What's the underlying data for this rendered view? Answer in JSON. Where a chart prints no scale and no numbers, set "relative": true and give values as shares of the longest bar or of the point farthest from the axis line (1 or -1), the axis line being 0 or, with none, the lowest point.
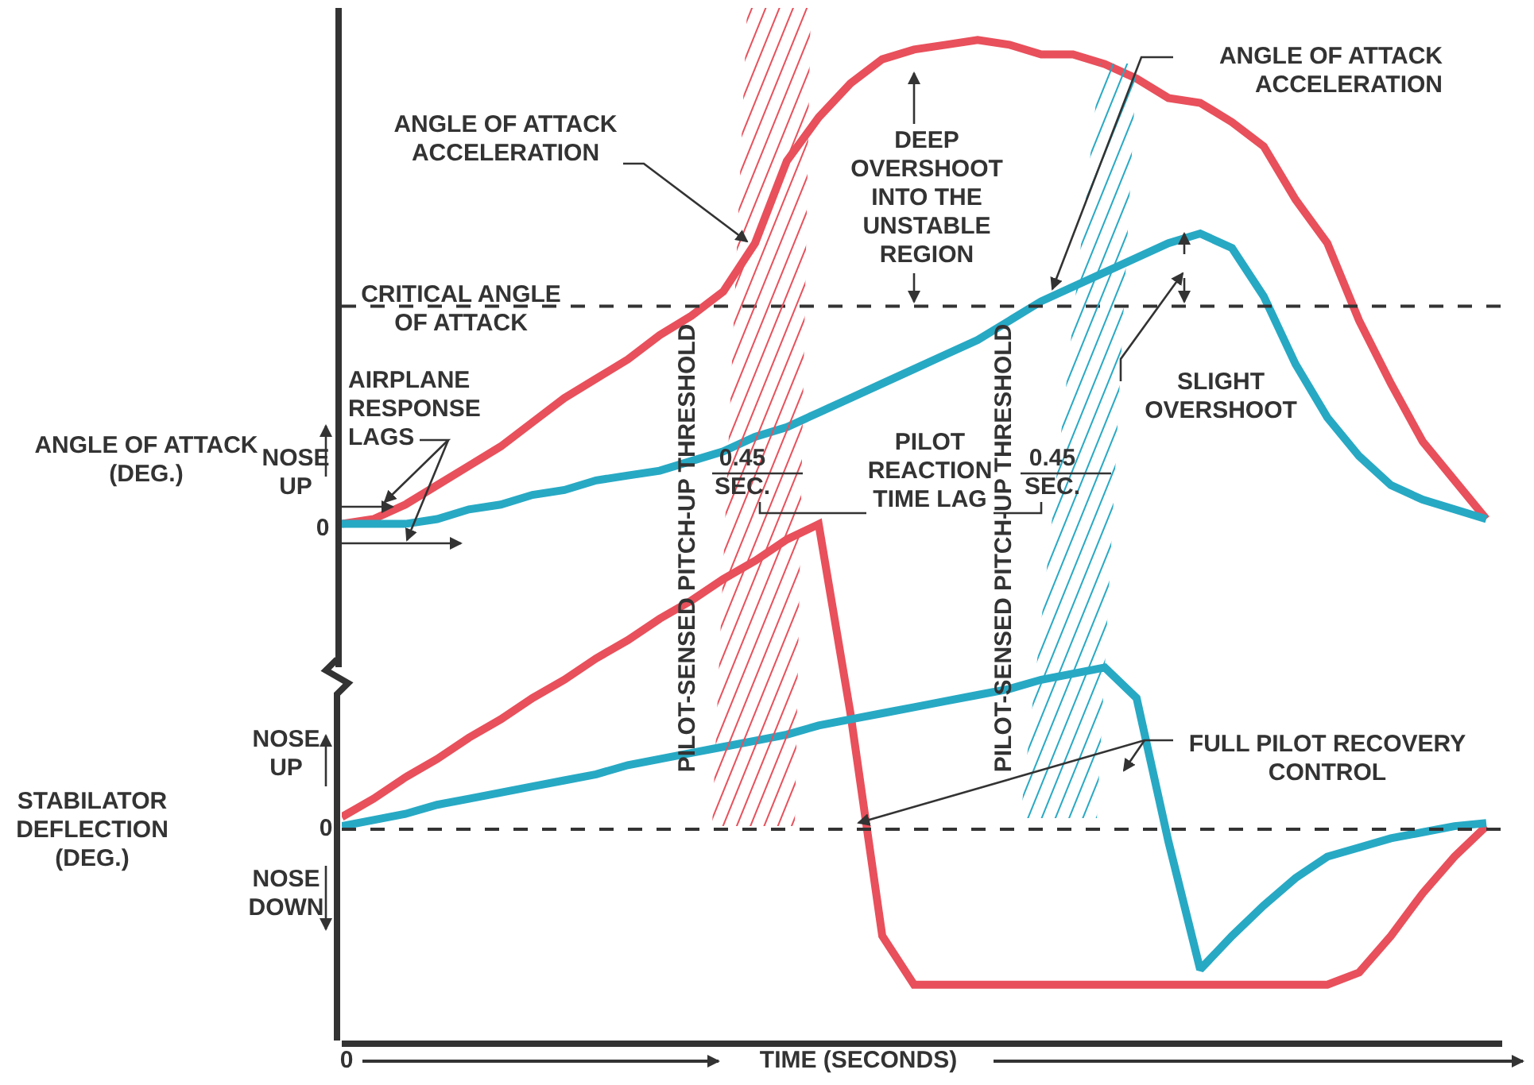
{
  "chart_data": [
    {
      "type": "line",
      "relative": true,
      "ylabel": "ANGLE OF ATTACK (DEG.)",
      "marker": "none",
      "line_style": "solid",
      "categories": [
        null,
        null,
        null,
        null,
        null,
        null,
        null,
        null,
        null,
        null,
        null,
        null,
        null,
        null,
        null,
        null,
        null,
        null,
        null,
        null,
        null,
        null,
        null,
        null,
        null,
        null,
        null,
        null,
        null,
        null,
        null,
        null,
        null,
        null,
        null,
        null,
        null
      ],
      "series": [
        {
          "color": "#e8505b",
          "values": [
            0.0,
            0.01,
            0.04,
            0.08,
            0.12,
            0.16,
            0.21,
            0.26,
            0.3,
            0.34,
            0.39,
            0.43,
            0.48,
            0.58,
            0.75,
            0.84,
            0.91,
            0.96,
            0.98,
            0.99,
            1.0,
            0.99,
            0.97,
            0.97,
            0.95,
            0.92,
            0.88,
            0.87,
            0.83,
            0.78,
            0.67,
            0.58,
            0.42,
            0.29,
            0.17,
            0.09,
            0.01
          ]
        },
        {
          "color": "#27a9c4",
          "values": [
            0.0,
            0.0,
            0.0,
            0.01,
            0.03,
            0.04,
            0.06,
            0.07,
            0.09,
            0.1,
            0.11,
            0.13,
            0.15,
            0.18,
            0.2,
            0.23,
            0.26,
            0.29,
            0.32,
            0.35,
            0.38,
            0.42,
            0.46,
            0.49,
            0.52,
            0.55,
            0.58,
            0.6,
            0.57,
            0.47,
            0.33,
            0.22,
            0.14,
            0.08,
            0.05,
            0.03,
            0.01
          ]
        }
      ],
      "ref_lines": [
        {
          "axis": "y",
          "value": 0.45,
          "label": "CRITICAL ANGLE OF ATTACK",
          "line_style": "dashed",
          "color": "#333333"
        }
      ],
      "annotations": [
        "ANGLE OF ATTACK ACCELERATION",
        "AIRPLANE RESPONSE LAGS",
        "NOSE UP",
        "0",
        "DEEP OVERSHOOT INTO THE UNSTABLE REGION",
        "ANGLE OF ATTACK ACCELERATION",
        "SLIGHT OVERSHOOT",
        "0.45 SEC.",
        "PILOT REACTION TIME LAG",
        "0.45 SEC.",
        "PILOT-SENSED PITCH-UP THRESHOLD",
        "PILOT-SENSED PITCH-UP THRESHOLD"
      ]
    },
    {
      "type": "line",
      "relative": true,
      "ylabel": "STABILATOR DEFLECTION (DEG.)",
      "xlabel": "TIME (SECONDS)",
      "marker": "none",
      "line_style": "solid",
      "categories": [
        null,
        null,
        null,
        null,
        null,
        null,
        null,
        null,
        null,
        null,
        null,
        null,
        null,
        null,
        null,
        null,
        null,
        null,
        null,
        null,
        null,
        null,
        null,
        null,
        null,
        null,
        null,
        null,
        null,
        null,
        null,
        null,
        null,
        null,
        null,
        null,
        null
      ],
      "series": [
        {
          "color": "#e8505b",
          "values": [
            0.04,
            0.1,
            0.17,
            0.23,
            0.3,
            0.36,
            0.43,
            0.49,
            0.56,
            0.62,
            0.69,
            0.75,
            0.82,
            0.88,
            0.95,
            1.0,
            0.38,
            -0.35,
            -0.51,
            -0.51,
            -0.51,
            -0.51,
            -0.51,
            -0.51,
            -0.51,
            -0.51,
            -0.51,
            -0.51,
            -0.51,
            -0.51,
            -0.51,
            -0.51,
            -0.47,
            -0.35,
            -0.21,
            -0.09,
            0.01
          ]
        },
        {
          "color": "#27a9c4",
          "values": [
            0.01,
            0.03,
            0.05,
            0.08,
            0.1,
            0.12,
            0.14,
            0.16,
            0.18,
            0.21,
            0.23,
            0.25,
            0.27,
            0.29,
            0.31,
            0.34,
            0.36,
            0.38,
            0.4,
            0.42,
            0.44,
            0.46,
            0.49,
            0.51,
            0.53,
            0.43,
            -0.04,
            -0.46,
            -0.35,
            -0.25,
            -0.16,
            -0.09,
            -0.06,
            -0.03,
            -0.01,
            0.01,
            0.02
          ]
        }
      ],
      "ref_lines": [
        {
          "axis": "y",
          "value": 0,
          "line_style": "dashed",
          "color": "#333333"
        }
      ],
      "annotations": [
        "NOSE UP",
        "0",
        "NOSE DOWN",
        "FULL PILOT RECOVERY CONTROL",
        "0"
      ]
    }
  ]
}
